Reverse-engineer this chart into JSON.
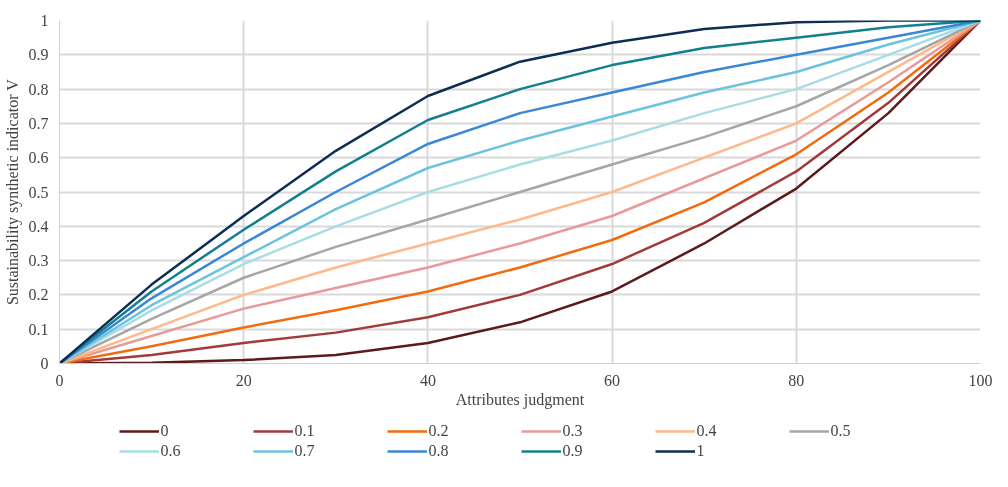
{
  "chart_data": {
    "type": "line",
    "xlabel": "Attributes judgment",
    "ylabel": "Sustainability synthetic indicator V",
    "x": [
      0,
      10,
      20,
      30,
      40,
      50,
      60,
      70,
      80,
      90,
      100
    ],
    "xlim": [
      0,
      100
    ],
    "xticks": [
      0,
      20,
      40,
      60,
      80,
      100
    ],
    "ylim": [
      0,
      1
    ],
    "yticks": [
      0,
      0.1,
      0.2,
      0.3,
      0.4,
      0.5,
      0.6,
      0.7,
      0.8,
      0.9,
      1
    ],
    "grid": true,
    "legend": "bottom",
    "marker": "none",
    "line_style": "solid",
    "series": [
      {
        "name": "0",
        "color": "#5c1a1a",
        "values": [
          0,
          0.002,
          0.01,
          0.025,
          0.06,
          0.12,
          0.21,
          0.35,
          0.51,
          0.73,
          1
        ]
      },
      {
        "name": "0.1",
        "color": "#a33a3a",
        "values": [
          0,
          0.025,
          0.06,
          0.09,
          0.135,
          0.2,
          0.29,
          0.41,
          0.56,
          0.76,
          1
        ]
      },
      {
        "name": "0.2",
        "color": "#f26b0f",
        "values": [
          0,
          0.05,
          0.105,
          0.155,
          0.21,
          0.28,
          0.36,
          0.47,
          0.61,
          0.79,
          1
        ]
      },
      {
        "name": "0.3",
        "color": "#e8999a",
        "values": [
          0,
          0.08,
          0.16,
          0.22,
          0.28,
          0.35,
          0.43,
          0.54,
          0.65,
          0.82,
          1
        ]
      },
      {
        "name": "0.4",
        "color": "#fdb98a",
        "values": [
          0,
          0.1,
          0.2,
          0.28,
          0.35,
          0.42,
          0.5,
          0.6,
          0.7,
          0.85,
          1
        ]
      },
      {
        "name": "0.5",
        "color": "#a6a6a6",
        "values": [
          0,
          0.13,
          0.25,
          0.34,
          0.42,
          0.5,
          0.58,
          0.66,
          0.75,
          0.87,
          1
        ]
      },
      {
        "name": "0.6",
        "color": "#a8dce6",
        "values": [
          0,
          0.155,
          0.29,
          0.4,
          0.5,
          0.58,
          0.65,
          0.73,
          0.8,
          0.9,
          1
        ]
      },
      {
        "name": "0.7",
        "color": "#6cc3dc",
        "values": [
          0,
          0.17,
          0.31,
          0.45,
          0.57,
          0.65,
          0.72,
          0.79,
          0.85,
          0.93,
          1
        ]
      },
      {
        "name": "0.8",
        "color": "#3a87d6",
        "values": [
          0,
          0.19,
          0.35,
          0.5,
          0.64,
          0.73,
          0.79,
          0.85,
          0.9,
          0.95,
          1
        ]
      },
      {
        "name": "0.9",
        "color": "#13808f",
        "values": [
          0,
          0.21,
          0.39,
          0.56,
          0.71,
          0.8,
          0.87,
          0.92,
          0.95,
          0.98,
          1
        ]
      },
      {
        "name": "1",
        "color": "#0d2d55",
        "values": [
          0,
          0.23,
          0.43,
          0.62,
          0.78,
          0.88,
          0.935,
          0.975,
          0.995,
          1,
          1
        ]
      }
    ]
  }
}
